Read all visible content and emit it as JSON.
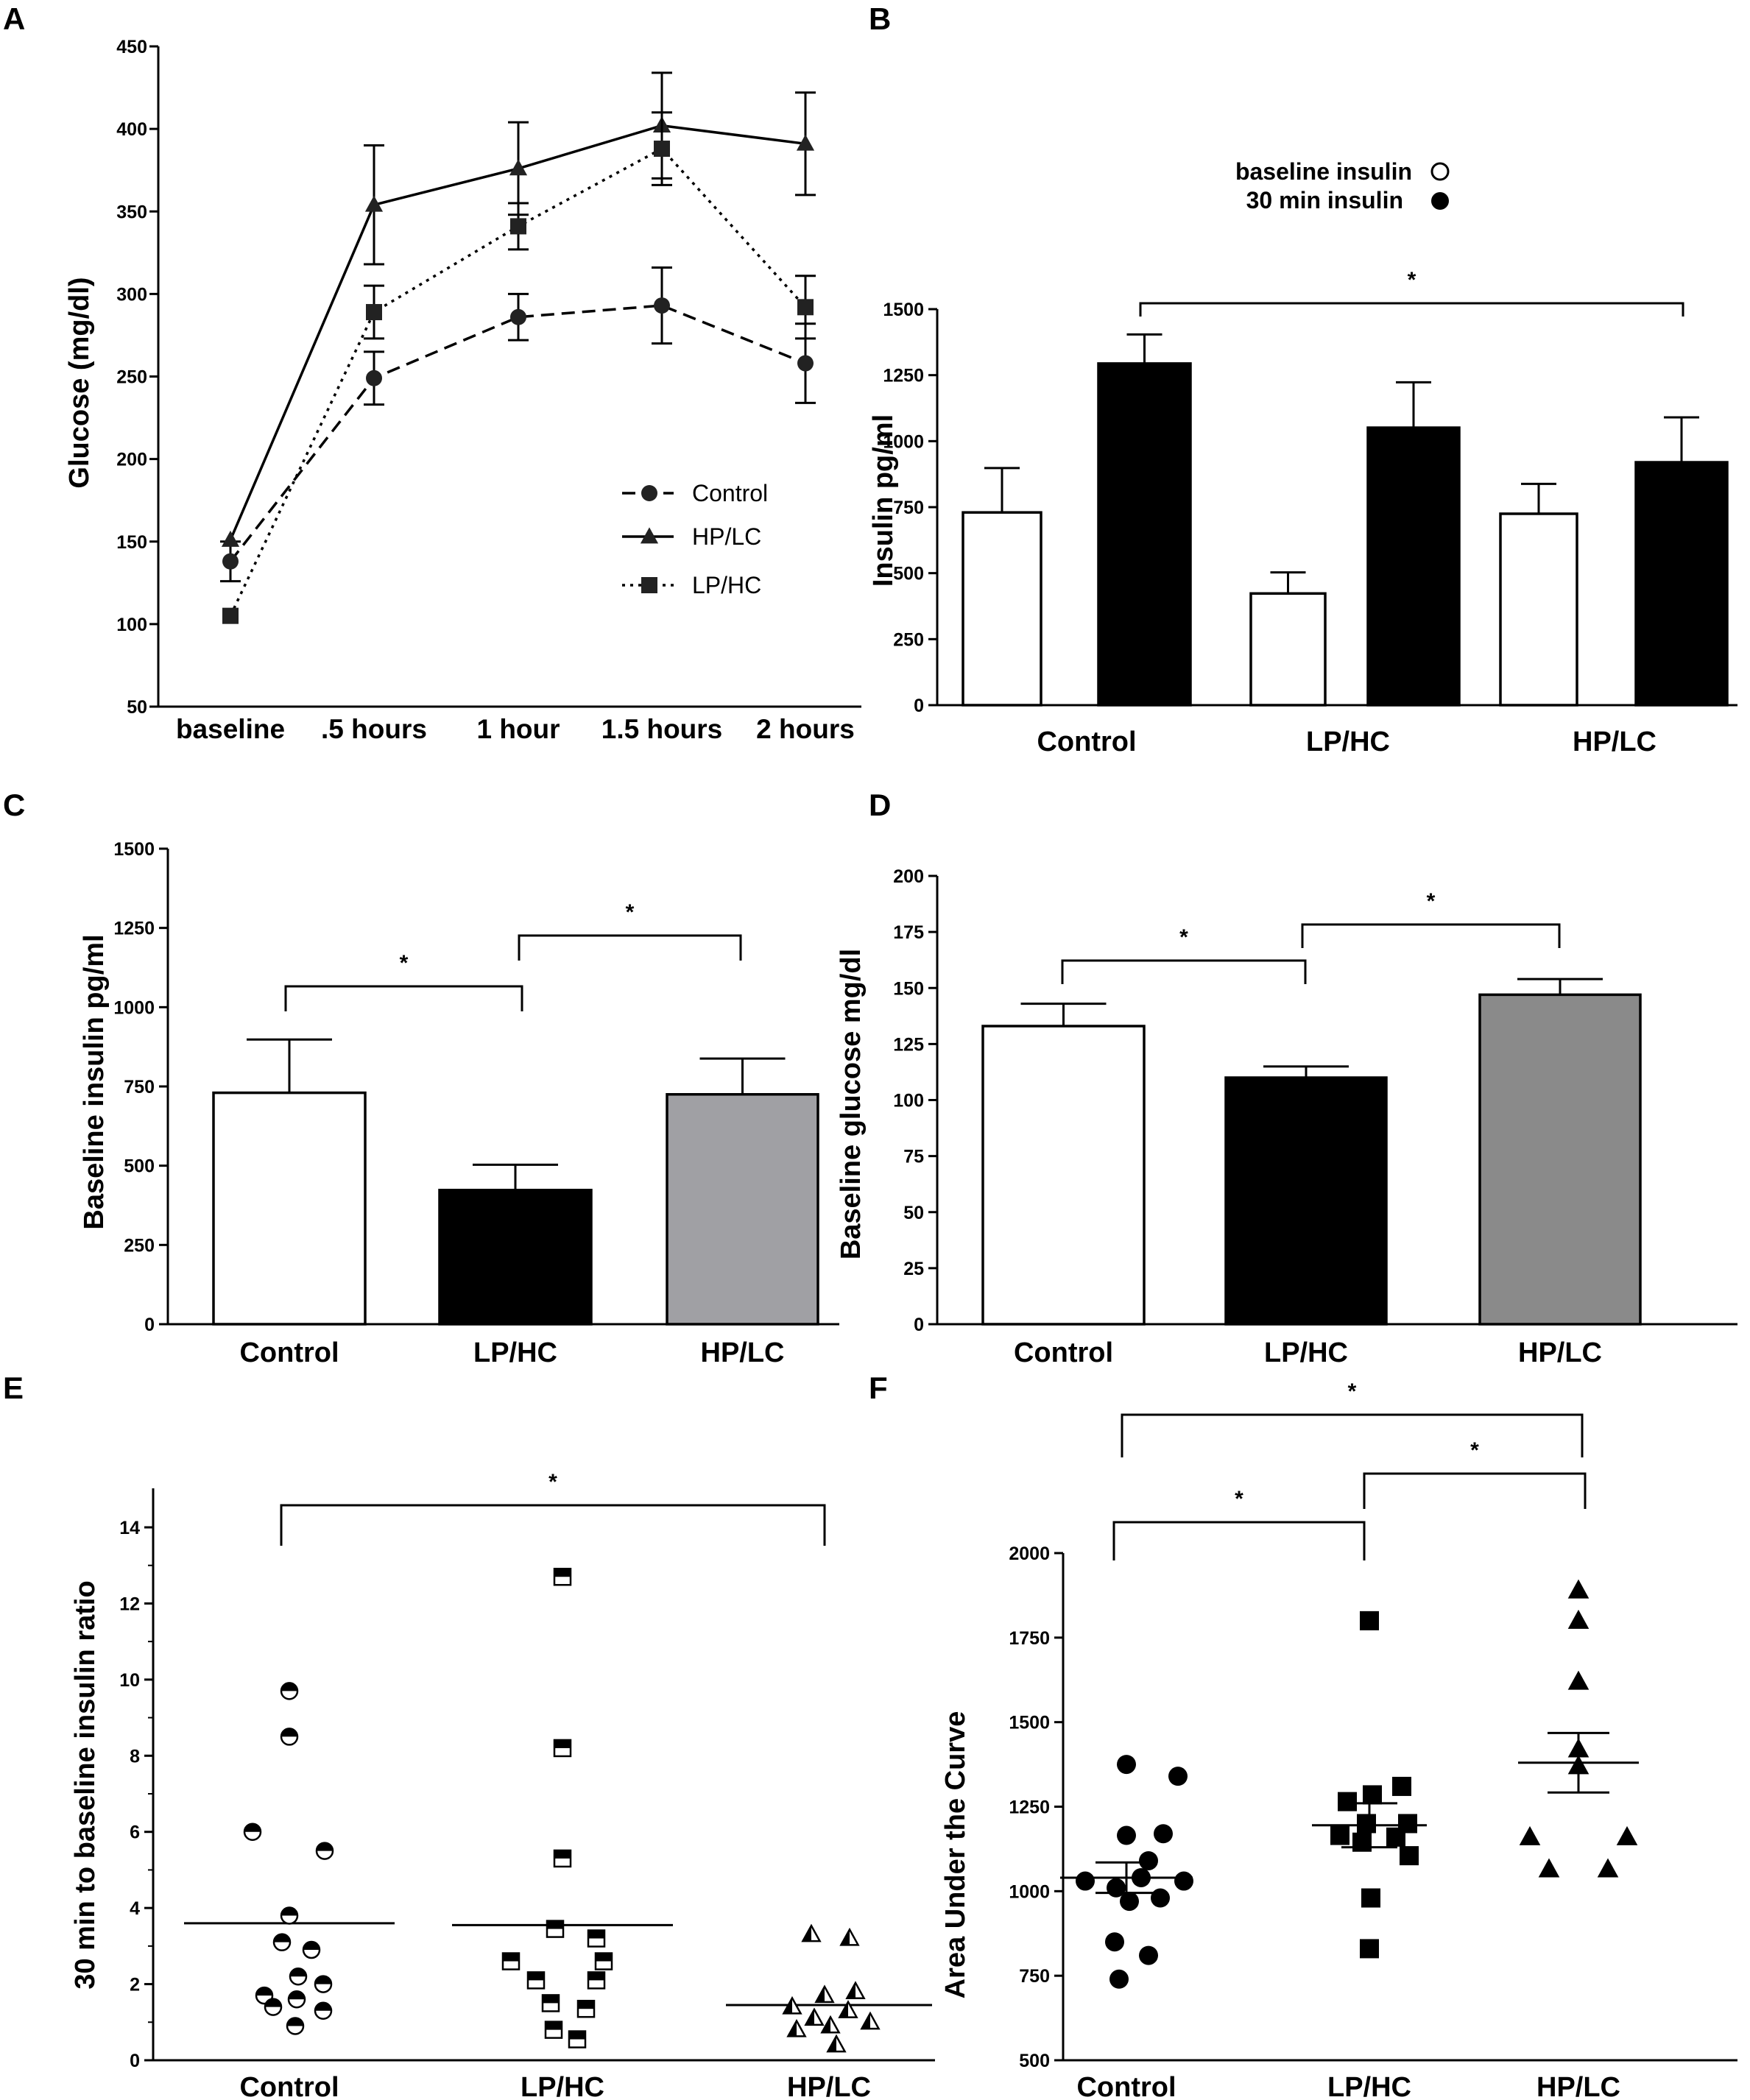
{
  "chart_data": [
    {
      "id": "A",
      "type": "line",
      "panel_label": "A",
      "ylabel": "Glucose (mg/dl)",
      "xlabel": "",
      "ylim": [
        50,
        450
      ],
      "yticks": [
        50,
        100,
        150,
        200,
        250,
        300,
        350,
        400,
        450
      ],
      "categories": [
        "baseline",
        ".5 hours",
        "1 hour",
        "1.5 hours",
        "2 hours"
      ],
      "legend_position": "bottom-right",
      "series": [
        {
          "name": "Control",
          "marker": "circle",
          "dash": "dashed",
          "values": [
            138,
            249,
            286,
            293,
            258
          ],
          "errors": [
            12,
            16,
            14,
            23,
            24
          ]
        },
        {
          "name": "HP/LC",
          "marker": "triangle",
          "dash": "solid",
          "values": [
            151,
            354,
            376,
            402,
            391
          ],
          "errors": [
            6,
            36,
            28,
            32,
            31
          ]
        },
        {
          "name": "LP/HC",
          "marker": "square",
          "dash": "dotted",
          "values": [
            105,
            289,
            341,
            388,
            292
          ],
          "errors": [
            4,
            16,
            14,
            22,
            19
          ]
        }
      ]
    },
    {
      "id": "B",
      "type": "bar",
      "panel_label": "B",
      "ylabel": "Insulin pg/ml",
      "ylim": [
        0,
        1500
      ],
      "yticks": [
        0,
        250,
        500,
        750,
        1000,
        1250,
        1500
      ],
      "categories": [
        "Control",
        "LP/HC",
        "HP/LC"
      ],
      "legend": [
        "baseline insulin",
        "30 min insulin"
      ],
      "legend_position": "top-right",
      "series": [
        {
          "name": "baseline insulin",
          "color": "#ffffff",
          "values": [
            730,
            423,
            725
          ],
          "errors": [
            168,
            80,
            113
          ]
        },
        {
          "name": "30 min insulin",
          "color": "#000000",
          "values": [
            1294,
            1051,
            920
          ],
          "errors": [
            110,
            172,
            170
          ]
        }
      ],
      "significance": [
        {
          "from": 0,
          "to": 2,
          "label": "*"
        }
      ]
    },
    {
      "id": "C",
      "type": "bar",
      "panel_label": "C",
      "ylabel": "Baseline insulin pg/ml",
      "ylim": [
        0,
        1500
      ],
      "yticks": [
        0,
        250,
        500,
        750,
        1000,
        1250,
        1500
      ],
      "categories": [
        "Control",
        "LP/HC",
        "HP/LC"
      ],
      "values": [
        730,
        423,
        725
      ],
      "errors": [
        168,
        80,
        113
      ],
      "colors": [
        "#ffffff",
        "#000000",
        "#a0a0a4"
      ],
      "significance": [
        {
          "from": 0,
          "to": 1,
          "label": "*"
        },
        {
          "from": 1,
          "to": 2,
          "label": "*"
        }
      ]
    },
    {
      "id": "D",
      "type": "bar",
      "panel_label": "D",
      "ylabel": "Baseline glucose mg/dl",
      "ylim": [
        0,
        200
      ],
      "yticks": [
        0,
        25,
        50,
        75,
        100,
        125,
        150,
        175,
        200
      ],
      "categories": [
        "Control",
        "LP/HC",
        "HP/LC"
      ],
      "values": [
        133,
        110,
        147
      ],
      "errors": [
        10,
        5,
        7
      ],
      "colors": [
        "#ffffff",
        "#000000",
        "#8a8a8a"
      ],
      "significance": [
        {
          "from": 0,
          "to": 1,
          "label": "*"
        },
        {
          "from": 1,
          "to": 2,
          "label": "*"
        }
      ]
    },
    {
      "id": "E",
      "type": "scatter",
      "panel_label": "E",
      "ylabel": "30 min to baseline insulin ratio",
      "ylim": [
        0,
        14.5
      ],
      "yticks": [
        0,
        2,
        4,
        6,
        8,
        10,
        12,
        14
      ],
      "categories": [
        "Control",
        "LP/HC",
        "HP/LC"
      ],
      "groups": [
        {
          "name": "Control",
          "marker": "half-circle",
          "mean": 3.6,
          "points": [
            9.7,
            8.5,
            6.0,
            5.5,
            3.8,
            3.1,
            2.9,
            2.2,
            2.0,
            1.7,
            1.6,
            1.4,
            1.3,
            0.9
          ]
        },
        {
          "name": "LP/HC",
          "marker": "half-square",
          "mean": 3.55,
          "points": [
            12.7,
            8.2,
            5.3,
            3.45,
            3.2,
            2.6,
            2.6,
            2.1,
            2.1,
            1.5,
            1.35,
            0.8,
            0.55
          ]
        },
        {
          "name": "HP/LC",
          "marker": "half-triangle",
          "mean": 1.45,
          "points": [
            3.3,
            3.2,
            1.8,
            1.7,
            1.4,
            1.3,
            1.1,
            1.0,
            0.9,
            0.8,
            0.4
          ]
        }
      ],
      "significance": [
        {
          "from": 0,
          "to": 2,
          "label": "*"
        }
      ]
    },
    {
      "id": "F",
      "type": "scatter",
      "panel_label": "F",
      "ylabel": "Area Under the Curve",
      "ylim": [
        500,
        2000
      ],
      "yticks": [
        500,
        750,
        1000,
        1250,
        1500,
        1750,
        2000
      ],
      "categories": [
        "Control",
        "LP/HC",
        "HP/LC"
      ],
      "groups": [
        {
          "name": "Control",
          "marker": "circle",
          "mean": 1040,
          "sem": 45,
          "points": [
            1375,
            1340,
            1165,
            1170,
            1090,
            1030,
            1030,
            1040,
            1010,
            980,
            970,
            850,
            810,
            740
          ]
        },
        {
          "name": "LP/HC",
          "marker": "square",
          "mean": 1195,
          "sem": 65,
          "points": [
            1800,
            1310,
            1285,
            1265,
            1200,
            1200,
            1165,
            1160,
            1145,
            1105,
            980,
            830
          ]
        },
        {
          "name": "HP/LC",
          "marker": "triangle",
          "mean": 1380,
          "sem": 88,
          "points": [
            1890,
            1800,
            1620,
            1420,
            1370,
            1160,
            1160,
            1065,
            1065
          ]
        }
      ],
      "significance": [
        {
          "from": 0,
          "to": 1,
          "label": "*"
        },
        {
          "from": 1,
          "to": 2,
          "label": "*"
        },
        {
          "from": 0,
          "to": 2,
          "label": "*"
        }
      ]
    }
  ]
}
